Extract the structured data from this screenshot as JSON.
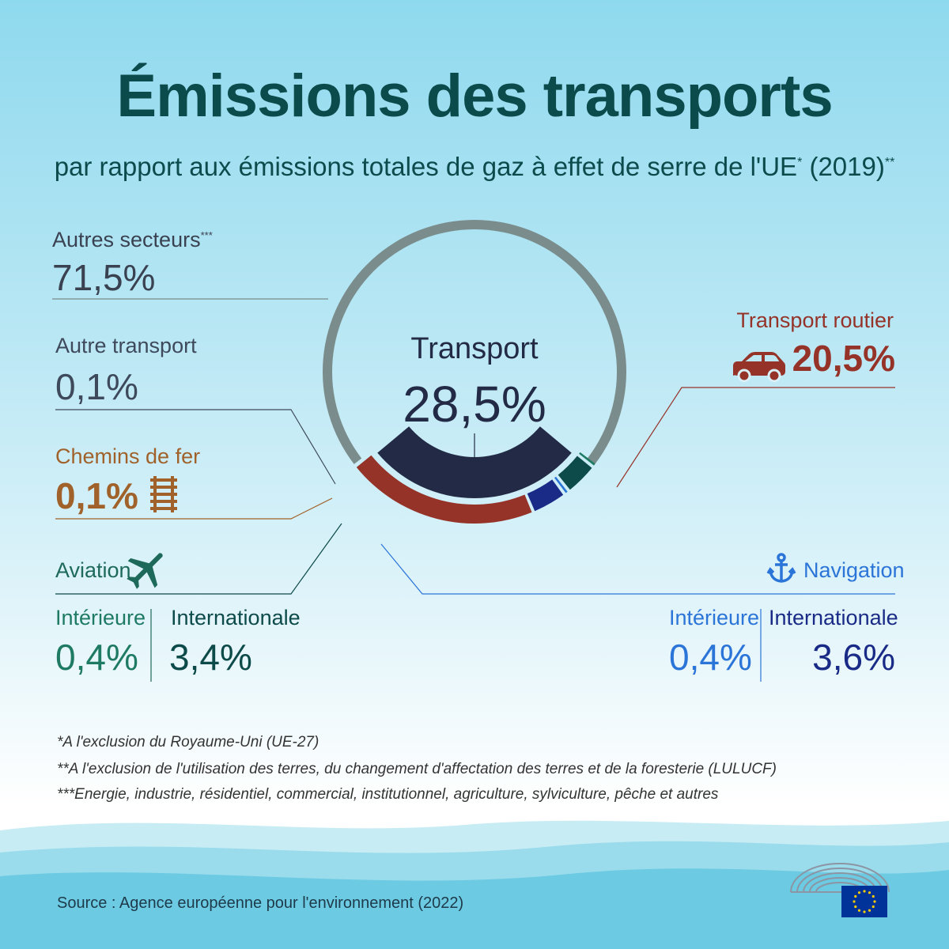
{
  "title": "Émissions des transports",
  "subtitle": {
    "text": "par rapport aux émissions totales de gaz à effet de serre de l'UE",
    "mark1": "*",
    "year": " (2019)",
    "mark2": "**"
  },
  "chart_data": {
    "type": "pie",
    "style": "donut",
    "center_label": "Transport",
    "center_value": "28,5%",
    "slices": [
      {
        "key": "autres_secteurs",
        "label": "Autres secteurs",
        "label_mark": "***",
        "value": 71.5,
        "value_text": "71,5%",
        "color": "#7a8d8c"
      },
      {
        "key": "transport_routier",
        "label": "Transport routier",
        "value": 20.5,
        "value_text": "20,5%",
        "color": "#963329"
      },
      {
        "key": "navigation_internationale",
        "label": "Internationale",
        "group": "Navigation",
        "value": 3.6,
        "value_text": "3,6%",
        "color": "#1a2a87"
      },
      {
        "key": "navigation_interieure",
        "label": "Intérieure",
        "group": "Navigation",
        "value": 0.4,
        "value_text": "0,4%",
        "color": "#2b74d8"
      },
      {
        "key": "aviation_internationale",
        "label": "Internationale",
        "group": "Aviation",
        "value": 3.4,
        "value_text": "3,4%",
        "color": "#0d4a4a"
      },
      {
        "key": "aviation_interieure",
        "label": "Intérieure",
        "group": "Aviation",
        "value": 0.4,
        "value_text": "0,4%",
        "color": "#1e7a63"
      },
      {
        "key": "chemins_de_fer",
        "label": "Chemins de fer",
        "value": 0.1,
        "value_text": "0,1%",
        "color": "#a0622a"
      },
      {
        "key": "autre_transport",
        "label": "Autre transport",
        "value": 0.1,
        "value_text": "0,1%",
        "color": "#3e4a5c"
      }
    ],
    "transport_total_color": "#222a45"
  },
  "groups": {
    "aviation": "Aviation",
    "navigation": "Navigation"
  },
  "colors": {
    "title": "#0c4b4c",
    "autres": "#3a4150",
    "autre_transport": "#3e4a5c",
    "chemins": "#a0622a",
    "routier": "#963329",
    "aviation": "#1e6a5a",
    "aviation_int": "#0d4a4a",
    "navigation": "#2b74d8",
    "navigation_int": "#1a2a87"
  },
  "icons": {
    "car": "car-icon",
    "rail": "railway-icon",
    "plane": "airplane-icon",
    "anchor": "anchor-icon",
    "parliament": "european-parliament-logo",
    "eu_flag": "eu-flag-icon"
  },
  "footnotes": [
    "*A l'exclusion du Royaume-Uni (UE-27)",
    "**A l'exclusion de l'utilisation des terres, du changement d'affectation des terres et de la foresterie (LULUCF)",
    "***Energie, industrie, résidentiel, commercial, institutionnel, agriculture, sylviculture, pêche et autres"
  ],
  "source": "Source : Agence européenne pour l'environnement (2022)"
}
